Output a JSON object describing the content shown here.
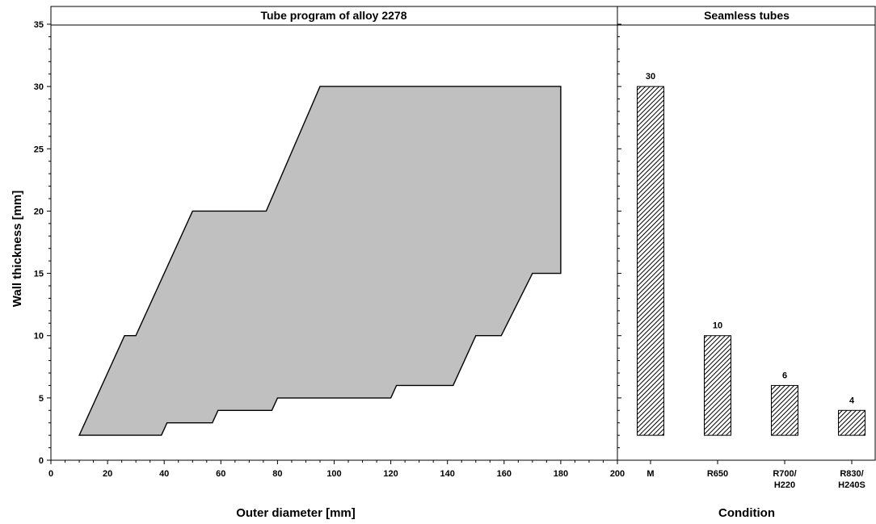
{
  "chart_data": [
    {
      "type": "area",
      "title": "Tube program of alloy 2278",
      "xlabel": "Outer diameter [mm]",
      "ylabel": "Wall thickness [mm]",
      "xlim": [
        0,
        200
      ],
      "ylim": [
        0,
        35
      ],
      "xticks": [
        0,
        20,
        40,
        60,
        80,
        100,
        120,
        140,
        160,
        180,
        200
      ],
      "yticks": [
        0,
        5,
        10,
        15,
        20,
        25,
        30,
        35
      ],
      "fill_color": "#c0c0c0",
      "grid": false,
      "series": [
        {
          "points": [
            [
              10,
              2
            ],
            [
              39,
              2
            ],
            [
              41,
              3
            ],
            [
              57,
              3
            ],
            [
              59,
              4
            ],
            [
              78,
              4
            ],
            [
              80,
              5
            ],
            [
              120,
              5
            ],
            [
              122,
              6
            ],
            [
              142,
              6
            ],
            [
              150,
              10
            ],
            [
              159,
              10
            ],
            [
              170,
              15
            ],
            [
              180,
              15
            ],
            [
              180,
              30
            ],
            [
              95,
              30
            ],
            [
              76,
              20
            ],
            [
              50,
              20
            ],
            [
              30,
              10
            ],
            [
              26,
              10
            ]
          ]
        }
      ]
    },
    {
      "type": "bar",
      "title": "Seamless tubes",
      "xlabel": "Condition",
      "ylim": [
        0,
        35
      ],
      "baseline": 2,
      "categories": [
        "M",
        "R650",
        "R700/\nH220",
        "R830/\nH240S"
      ],
      "values": [
        30,
        10,
        6,
        4
      ],
      "pattern": "diagonal-hatch",
      "grid": false
    }
  ]
}
